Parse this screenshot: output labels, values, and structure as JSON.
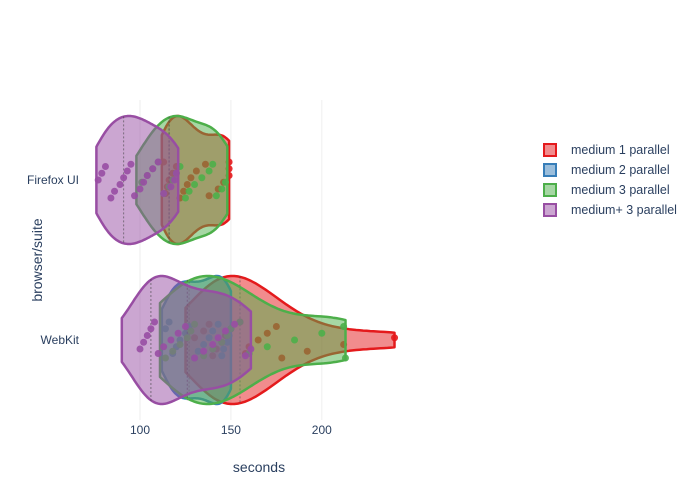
{
  "chart_data": {
    "type": "violin",
    "orientation": "horizontal",
    "xlabel": "seconds",
    "ylabel": "browser/suite",
    "x_ticks": [
      100,
      150,
      200
    ],
    "xlim": [
      67,
      254
    ],
    "categories": [
      "Firefox UI",
      "WebKit"
    ],
    "grid": true,
    "legend_position": "right",
    "series": [
      {
        "name": "medium 1 parallel",
        "color": "#e41a1c",
        "data": {
          "Firefox UI": {
            "min": 112,
            "max": 149,
            "median": 116,
            "points": [
              149,
              149,
              149,
              146,
              143,
              138,
              136,
              131,
              128,
              126,
              124,
              122,
              120,
              118,
              116,
              115,
              114,
              113
            ]
          },
          "WebKit": {
            "min": 125,
            "max": 240,
            "median": 155,
            "points": [
              240,
              212,
              192,
              178,
              175,
              170,
              165,
              160,
              158,
              155,
              150,
              147,
              145,
              142,
              140,
              138,
              135,
              130
            ]
          }
        }
      },
      {
        "name": "medium 2 parallel",
        "color": "#377eb8",
        "data": {
          "WebKit": {
            "min": 112,
            "max": 150,
            "median": 127,
            "points": [
              150,
              149,
              148,
              146,
              145,
              143,
              140,
              138,
              135,
              132,
              130,
              127,
              125,
              122,
              120,
              118,
              116,
              114
            ]
          }
        }
      },
      {
        "name": "medium 3 parallel",
        "color": "#4daf4a",
        "data": {
          "Firefox UI": {
            "min": 98,
            "max": 148,
            "median": 116,
            "points": [
              147,
              145,
              142,
              140,
              138,
              134,
              130,
              127,
              125,
              122,
              120,
              118,
              116,
              113,
              110,
              107,
              104,
              101
            ]
          },
          "WebKit": {
            "min": 111,
            "max": 213,
            "median": 126,
            "points": [
              213,
              212,
              200,
              185,
              170,
              160,
              155,
              150,
              148,
              145,
              140,
              135,
              130,
              128,
              126,
              122,
              118,
              114
            ]
          }
        }
      },
      {
        "name": "medium+ 3 parallel",
        "color": "#984ea3",
        "data": {
          "Firefox UI": {
            "min": 76,
            "max": 121,
            "median": 91,
            "points": [
              120,
              119,
              117,
              113,
              110,
              107,
              104,
              102,
              100,
              97,
              95,
              93,
              91,
              89,
              86,
              84,
              81,
              79,
              77
            ]
          },
          "WebKit": {
            "min": 90,
            "max": 161,
            "median": 106,
            "points": [
              161,
              158,
              152,
              147,
              143,
              140,
              135,
              130,
              125,
              121,
              117,
              113,
              110,
              108,
              106,
              104,
              102,
              100
            ]
          }
        }
      }
    ]
  }
}
